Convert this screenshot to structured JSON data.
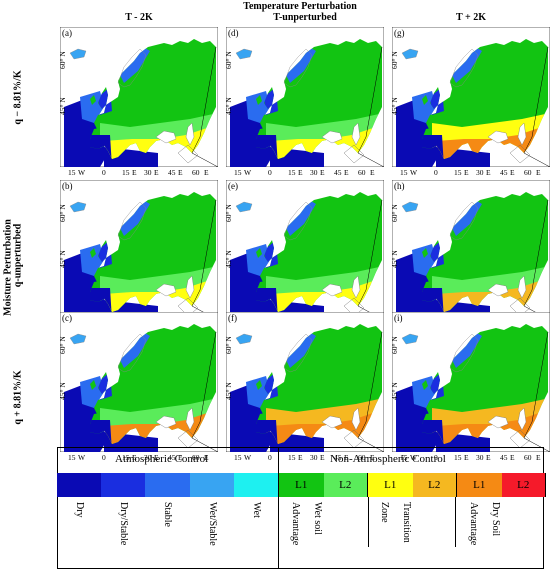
{
  "figure": {
    "top_title": "Temperature Perturbation",
    "col_headers": [
      "T - 2K",
      "T-unperturbed",
      "T + 2K"
    ],
    "side_title": "Moisture Perturbation",
    "row_headers": [
      "q − 8.81%/K",
      "q-unperturbed",
      "q + 8.81%/K"
    ],
    "panel_labels": [
      [
        "(a)",
        "(d)",
        "(g)"
      ],
      [
        "(b)",
        "(e)",
        "(h)"
      ],
      [
        "(c)",
        "(f)",
        "(i)"
      ]
    ],
    "lat_ticks": [
      "60° N",
      "45° N"
    ],
    "lon_ticks": [
      "15",
      "W",
      "0",
      "15",
      "E",
      "30",
      "E",
      "45",
      "E",
      "60",
      "E"
    ]
  },
  "legend": {
    "group_titles": [
      "Atmospheric Control",
      "Non-Atmospheric Control"
    ],
    "atmospheric_colors": [
      "#0a0ab4",
      "#1a2ee0",
      "#2a6cf0",
      "#38a4f2",
      "#1ef0f0"
    ],
    "atmospheric_labels": [
      "Dry",
      "Dry/Stable",
      "Stable",
      "Wet/Stable",
      "Wet"
    ],
    "non_atmospheric": [
      {
        "l1": "L1",
        "l2": "L2",
        "c1": "#12c412",
        "c2": "#5aec5a",
        "label_a": "Advantage",
        "label_b": "Wet soil"
      },
      {
        "l1": "L1",
        "l2": "L2",
        "c1": "#ffff10",
        "c2": "#f5b820",
        "label_a": "Zone",
        "label_b": "Transition"
      },
      {
        "l1": "L1",
        "l2": "L2",
        "c1": "#f58a14",
        "c2": "#f51a2a",
        "label_a": "Advantage",
        "label_b": "Dry Soil"
      }
    ]
  }
}
